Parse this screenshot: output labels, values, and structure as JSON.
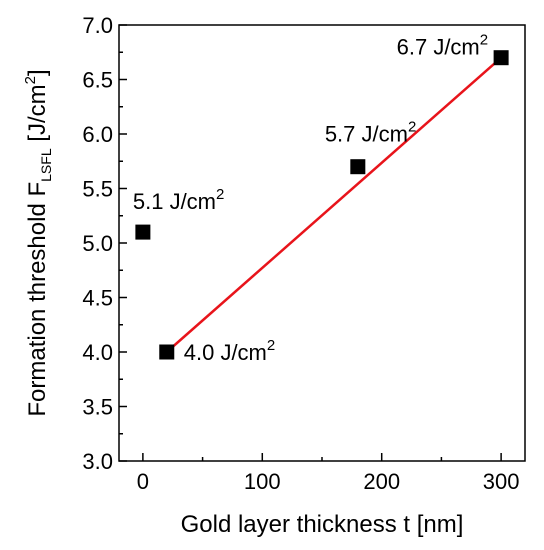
{
  "chart_data": {
    "type": "scatter",
    "xlabel": "Gold layer thickness t [nm]",
    "ylabel": {
      "main": "Formation threshold F",
      "subscript": "LSFL",
      "unit_open": " [J/cm",
      "unit_sup": "2",
      "unit_close": "]"
    },
    "xlim": [
      -20,
      320
    ],
    "ylim": [
      3.0,
      7.0
    ],
    "x_ticks": [
      0,
      100,
      200,
      300
    ],
    "x_tick_labels": [
      "0",
      "100",
      "200",
      "300"
    ],
    "y_ticks": [
      3.0,
      3.5,
      4.0,
      4.5,
      5.0,
      5.5,
      6.0,
      6.5,
      7.0
    ],
    "y_tick_labels": [
      "3.0",
      "3.5",
      "4.0",
      "4.5",
      "5.0",
      "5.5",
      "6.0",
      "6.5",
      "7.0"
    ],
    "grid": false,
    "legend": "none",
    "marker_color": "#000000",
    "fit_color": "#e8141b",
    "points": [
      {
        "x": 0,
        "y": 5.1,
        "label": "5.1 J/cm",
        "label_sup": "2"
      },
      {
        "x": 20,
        "y": 4.0,
        "label": "4.0 J/cm",
        "label_sup": "2"
      },
      {
        "x": 180,
        "y": 5.7,
        "label": "5.7 J/cm",
        "label_sup": "2"
      },
      {
        "x": 300,
        "y": 6.7,
        "label": "6.7 J/cm",
        "label_sup": "2"
      }
    ],
    "fit_line": {
      "x": [
        20,
        300
      ],
      "y": [
        4.0,
        6.7
      ]
    }
  }
}
